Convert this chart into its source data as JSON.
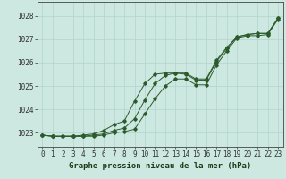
{
  "xlabel": "Graphe pression niveau de la mer (hPa)",
  "ylim": [
    1022.4,
    1028.6
  ],
  "xlim": [
    -0.5,
    23.5
  ],
  "yticks": [
    1023,
    1024,
    1025,
    1026,
    1027,
    1028
  ],
  "xticks": [
    0,
    1,
    2,
    3,
    4,
    5,
    6,
    7,
    8,
    9,
    10,
    11,
    12,
    13,
    14,
    15,
    16,
    17,
    18,
    19,
    20,
    21,
    22,
    23
  ],
  "bg_color": "#cce8e0",
  "grid_color": "#b0d4cc",
  "line_color": "#2d5a2d",
  "series1": [
    1022.9,
    1022.85,
    1022.85,
    1022.85,
    1022.85,
    1022.85,
    1022.9,
    1023.0,
    1023.05,
    1023.15,
    1023.8,
    1024.45,
    1025.0,
    1025.3,
    1025.3,
    1025.05,
    1025.05,
    1025.9,
    1026.5,
    1027.05,
    1027.15,
    1027.15,
    1027.2,
    1027.85
  ],
  "series2": [
    1022.9,
    1022.85,
    1022.85,
    1022.85,
    1022.85,
    1022.9,
    1022.95,
    1023.1,
    1023.2,
    1023.6,
    1024.4,
    1025.1,
    1025.45,
    1025.55,
    1025.55,
    1025.3,
    1025.3,
    1026.1,
    1026.65,
    1027.1,
    1027.2,
    1027.25,
    1027.25,
    1027.9
  ],
  "series3": [
    1022.9,
    1022.85,
    1022.85,
    1022.85,
    1022.9,
    1022.95,
    1023.1,
    1023.35,
    1023.5,
    1024.35,
    1025.1,
    1025.5,
    1025.55,
    1025.55,
    1025.5,
    1025.25,
    1025.25,
    1026.05,
    1026.6,
    1027.1,
    1027.2,
    1027.25,
    1027.25,
    1027.9
  ],
  "font_size": 5.5,
  "label_font_size": 6.5
}
